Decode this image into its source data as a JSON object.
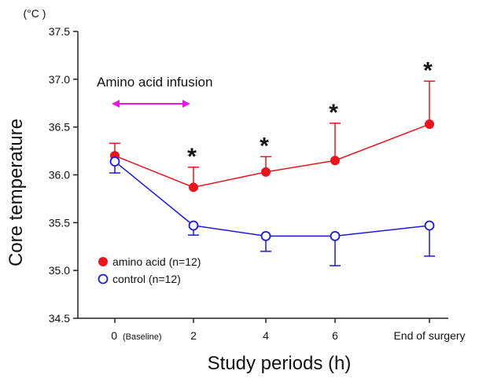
{
  "chart_data": {
    "type": "line",
    "title": "",
    "xlabel": "Study periods (h)",
    "ylabel": "Core temperature",
    "y_unit": "(°C )",
    "ylim": [
      34.5,
      37.5
    ],
    "yticks": [
      "34.5",
      "35.0",
      "35.5",
      "36.0",
      "36.5",
      "37.0",
      "37.5"
    ],
    "categories": [
      "0",
      "2",
      "4",
      "6",
      "End of surgery"
    ],
    "baseline_note": "(Baseline)",
    "series": [
      {
        "name": "amino acid (n=12)",
        "color": "#e8141e",
        "marker": "filled-circle",
        "values": [
          36.2,
          35.87,
          36.03,
          36.15,
          36.53
        ],
        "error_up": [
          0.13,
          0.21,
          0.16,
          0.39,
          0.45
        ],
        "error_down": [
          0,
          0,
          0,
          0,
          0
        ]
      },
      {
        "name": "control (n=12)",
        "color": "#1a1ad6",
        "marker": "open-circle",
        "values": [
          36.14,
          35.47,
          35.36,
          35.36,
          35.47
        ],
        "error_up": [
          0,
          0,
          0,
          0,
          0
        ],
        "error_down": [
          0.12,
          0.1,
          0.16,
          0.31,
          0.32
        ]
      }
    ],
    "significance": [
      "",
      "*",
      "*",
      "*",
      "*"
    ],
    "annotation": {
      "text": "Amino acid infusion",
      "from_category": "0",
      "to_category": "2",
      "arrow_color": "#e619e6"
    },
    "legend_position": "bottom-left"
  }
}
